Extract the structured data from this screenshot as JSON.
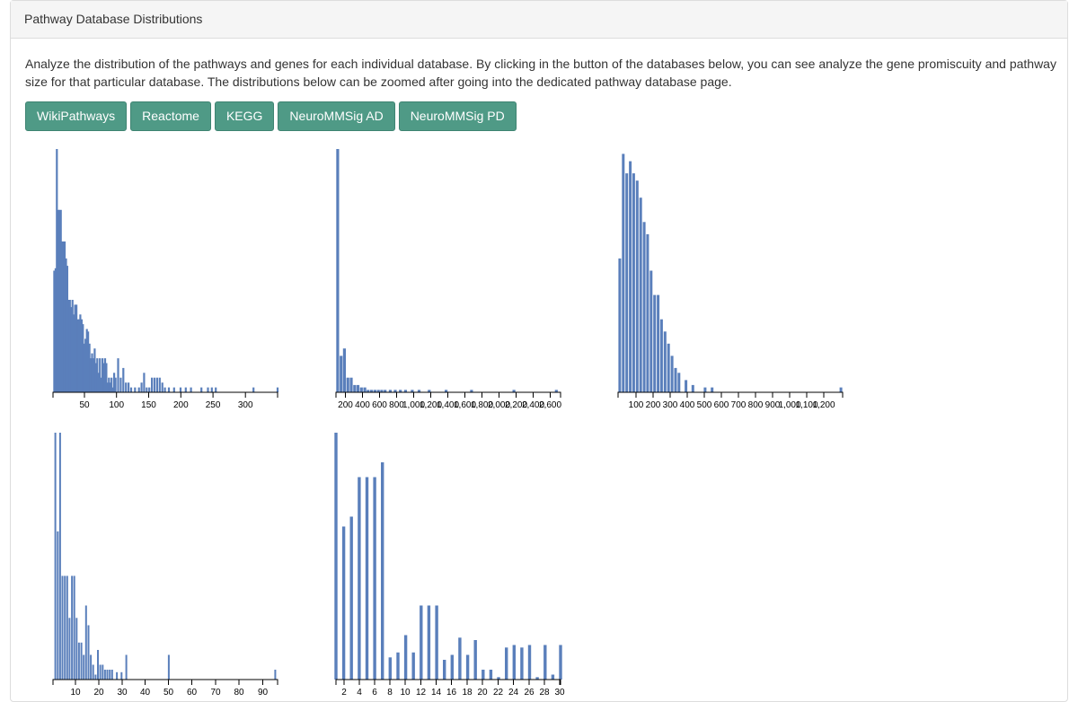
{
  "panel": {
    "title": "Pathway Database Distributions",
    "description": "Analyze the distribution of the pathways and genes for each individual database. By clicking in the button of the databases below, you can see analyze the gene promiscuity and pathway size for that particular database. The distributions below can be zoomed after going into the dedicated pathway database page."
  },
  "buttons": [
    "WikiPathways",
    "Reactome",
    "KEGG",
    "NeuroMMSig AD",
    "NeuroMMSig PD"
  ],
  "colors": {
    "bar": "#5a7fbb",
    "button": "#4f9a86"
  },
  "chart_data": [
    {
      "type": "bar",
      "database": "WikiPathways",
      "title": "",
      "xlabel": "",
      "ylabel": "",
      "xticks": [
        "50",
        "100",
        "150",
        "200",
        "250",
        "300"
      ],
      "xlim": [
        0,
        345
      ],
      "ylim": [
        0,
        100
      ],
      "x": [
        2,
        4,
        6,
        8,
        10,
        12,
        14,
        16,
        18,
        20,
        22,
        24,
        26,
        28,
        30,
        32,
        34,
        36,
        38,
        40,
        42,
        44,
        46,
        48,
        50,
        52,
        54,
        56,
        58,
        60,
        62,
        64,
        66,
        68,
        70,
        72,
        74,
        76,
        78,
        80,
        82,
        84,
        86,
        88,
        90,
        92,
        94,
        96,
        100,
        104,
        108,
        112,
        116,
        120,
        126,
        132,
        136,
        140,
        144,
        148,
        152,
        156,
        160,
        164,
        168,
        172,
        178,
        186,
        196,
        204,
        212,
        228,
        238,
        244,
        250,
        308,
        345
      ],
      "values": [
        50,
        51,
        100,
        75,
        75,
        75,
        62,
        62,
        62,
        55,
        52,
        38,
        38,
        35,
        38,
        32,
        36,
        36,
        30,
        30,
        32,
        30,
        28,
        20,
        22,
        26,
        25,
        20,
        14,
        16,
        14,
        18,
        12,
        14,
        8,
        14,
        6,
        14,
        12,
        14,
        12,
        4,
        6,
        4,
        6,
        2,
        8,
        6,
        14,
        6,
        10,
        4,
        4,
        2,
        2,
        2,
        4,
        8,
        2,
        2,
        6,
        6,
        6,
        6,
        4,
        2,
        2,
        2,
        2,
        2,
        2,
        2,
        2,
        2,
        2,
        2,
        2
      ]
    },
    {
      "type": "bar",
      "database": "Reactome",
      "title": "",
      "xlabel": "",
      "ylabel": "",
      "xticks": [
        "200",
        "400",
        "600",
        "800",
        "1,000",
        "1,200",
        "1,400",
        "1,600",
        "1,800",
        "2,000",
        "2,200",
        "2,400",
        "2,600"
      ],
      "xlim": [
        0,
        2650
      ],
      "ylim": [
        0,
        100
      ],
      "x": [
        20,
        60,
        100,
        140,
        180,
        220,
        260,
        300,
        340,
        380,
        420,
        460,
        500,
        540,
        580,
        640,
        700,
        760,
        820,
        900,
        980,
        1100,
        1300,
        1600,
        2100,
        2600
      ],
      "values": [
        100,
        15,
        18,
        6,
        6,
        3,
        3,
        2,
        2,
        1,
        1,
        1,
        1,
        1,
        1,
        1,
        1,
        1,
        1,
        1,
        1,
        1,
        1,
        1,
        1,
        1
      ]
    },
    {
      "type": "bar",
      "database": "KEGG",
      "title": "",
      "xlabel": "",
      "ylabel": "",
      "xticks": [
        "100",
        "200",
        "300",
        "400",
        "500",
        "600",
        "700",
        "800",
        "900",
        "1,000",
        "1,100",
        "1,200"
      ],
      "xlim": [
        0,
        1290
      ],
      "ylim": [
        0,
        100
      ],
      "x": [
        10,
        30,
        50,
        70,
        90,
        110,
        130,
        150,
        170,
        190,
        210,
        230,
        250,
        270,
        290,
        310,
        330,
        350,
        390,
        430,
        500,
        540,
        1280
      ],
      "values": [
        55,
        98,
        90,
        95,
        90,
        87,
        80,
        70,
        65,
        50,
        40,
        40,
        30,
        25,
        20,
        15,
        10,
        8,
        5,
        3,
        2,
        2,
        2
      ]
    },
    {
      "type": "bar",
      "database": "NeuroMMSig AD",
      "title": "",
      "xlabel": "",
      "ylabel": "",
      "xticks": [
        "10",
        "20",
        "30",
        "40",
        "50",
        "60",
        "70",
        "80",
        "90"
      ],
      "xlim": [
        0,
        95
      ],
      "ylim": [
        0,
        100
      ],
      "x": [
        1,
        2,
        3,
        4,
        5,
        6,
        7,
        8,
        9,
        10,
        11,
        12,
        13,
        14,
        15,
        16,
        17,
        18,
        19,
        20,
        21,
        22,
        23,
        24,
        25,
        27,
        29,
        31,
        49,
        94
      ],
      "values": [
        100,
        60,
        100,
        42,
        42,
        42,
        25,
        42,
        42,
        25,
        15,
        15,
        10,
        30,
        22,
        10,
        6,
        2,
        12,
        6,
        6,
        4,
        4,
        4,
        4,
        3,
        3,
        10,
        10,
        4
      ]
    },
    {
      "type": "bar",
      "database": "NeuroMMSig PD",
      "title": "",
      "xlabel": "",
      "ylabel": "",
      "xticks": [
        "2",
        "4",
        "6",
        "8",
        "10",
        "12",
        "14",
        "16",
        "18",
        "20",
        "22",
        "24",
        "26",
        "28",
        "30"
      ],
      "xlim": [
        1,
        30
      ],
      "ylim": [
        0,
        100
      ],
      "x": [
        1,
        2,
        3,
        4,
        5,
        6,
        7,
        8,
        9,
        10,
        11,
        12,
        13,
        14,
        15,
        16,
        17,
        18,
        19,
        20,
        21,
        22,
        23,
        24,
        25,
        26,
        27,
        28,
        29,
        30
      ],
      "values": [
        100,
        62,
        66,
        82,
        82,
        82,
        88,
        9,
        11,
        18,
        11,
        30,
        30,
        30,
        8,
        10,
        17,
        10,
        16,
        4,
        4,
        1,
        13,
        14,
        13,
        14,
        1,
        14,
        2,
        14
      ]
    }
  ]
}
